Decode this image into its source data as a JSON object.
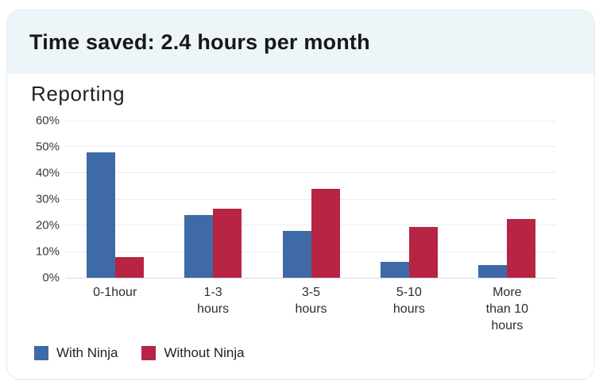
{
  "card": {
    "title": "Time saved: 2.4 hours per month"
  },
  "chart_data": {
    "type": "bar",
    "title": "Reporting",
    "categories": [
      "0-1hour",
      "1-3 hours",
      "3-5 hours",
      "5-10 hours",
      "More than 10 hours"
    ],
    "category_lines": [
      [
        "0-1hour"
      ],
      [
        "1-3",
        "hours"
      ],
      [
        "3-5",
        "hours"
      ],
      [
        "5-10",
        "hours"
      ],
      [
        "More",
        "than 10",
        "hours"
      ]
    ],
    "series": [
      {
        "name": "With Ninja",
        "color": "#3e6aa8",
        "values": [
          48,
          24,
          18,
          6,
          5
        ]
      },
      {
        "name": "Without Ninja",
        "color": "#b82443",
        "values": [
          8,
          26.5,
          34,
          19.5,
          22.5
        ]
      }
    ],
    "ylim": [
      0,
      60
    ],
    "y_ticks": [
      "60%",
      "50%",
      "40%",
      "30%",
      "20%",
      "10%",
      "0%"
    ],
    "grid": true,
    "legend_position": "bottom-left"
  },
  "colors": {
    "header_bg": "#edf5f8",
    "card_border": "#e2eaef",
    "gridline": "#e9edef",
    "with_ninja": "#3e6aa8",
    "without_ninja": "#b82443"
  }
}
